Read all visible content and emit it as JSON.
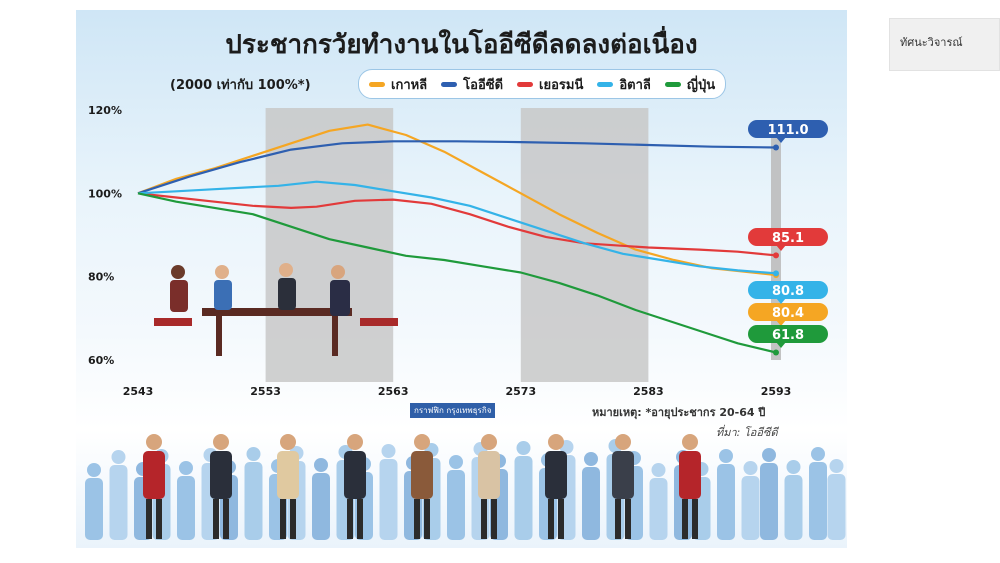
{
  "sidebar": {
    "tab_label": "ทัศนะวิจารณ์"
  },
  "chart_data": {
    "type": "line",
    "title": "ประชากรวัยทำงานในโออีซีดีลดลงต่อเนื่อง",
    "subtitle": "(2000 เท่ากับ 100%*)",
    "x": [
      2543,
      2553,
      2563,
      2573,
      2583,
      2593
    ],
    "x_ticks": [
      "2543",
      "2553",
      "2563",
      "2573",
      "2583",
      "2593"
    ],
    "y_ticks": [
      "120%",
      "100%",
      "80%",
      "60%"
    ],
    "ylim": [
      60,
      120
    ],
    "shaded_ranges": [
      [
        2553,
        2563
      ],
      [
        2573,
        2583
      ]
    ],
    "series": [
      {
        "name": "เกาหลี",
        "color": "#f5a623",
        "end_label": "80.4",
        "points": [
          [
            2543,
            100
          ],
          [
            2546,
            103.5
          ],
          [
            2549,
            106
          ],
          [
            2552,
            109
          ],
          [
            2555,
            112
          ],
          [
            2558,
            115
          ],
          [
            2561,
            116.5
          ],
          [
            2564,
            114
          ],
          [
            2567,
            110
          ],
          [
            2570,
            105
          ],
          [
            2573,
            100
          ],
          [
            2576,
            95
          ],
          [
            2579,
            90.5
          ],
          [
            2582,
            86.5
          ],
          [
            2585,
            84
          ],
          [
            2588,
            82
          ],
          [
            2593,
            80.4
          ]
        ]
      },
      {
        "name": "โออีซีดี",
        "color": "#2e5fb0",
        "end_label": "111.0",
        "points": [
          [
            2543,
            100
          ],
          [
            2547,
            104
          ],
          [
            2551,
            107.5
          ],
          [
            2555,
            110.5
          ],
          [
            2559,
            112
          ],
          [
            2563,
            112.5
          ],
          [
            2568,
            112.5
          ],
          [
            2573,
            112.3
          ],
          [
            2578,
            112
          ],
          [
            2583,
            111.6
          ],
          [
            2588,
            111.2
          ],
          [
            2593,
            111.0
          ]
        ]
      },
      {
        "name": "เยอรมนี",
        "color": "#e23a3a",
        "end_label": "85.1",
        "points": [
          [
            2543,
            100
          ],
          [
            2546,
            99
          ],
          [
            2549,
            98
          ],
          [
            2552,
            97
          ],
          [
            2555,
            96.5
          ],
          [
            2557,
            96.8
          ],
          [
            2560,
            98.2
          ],
          [
            2563,
            98.5
          ],
          [
            2566,
            97.5
          ],
          [
            2569,
            95
          ],
          [
            2572,
            92
          ],
          [
            2575,
            89.5
          ],
          [
            2578,
            88
          ],
          [
            2583,
            87
          ],
          [
            2587,
            86.5
          ],
          [
            2590,
            86
          ],
          [
            2593,
            85.1
          ]
        ]
      },
      {
        "name": "อิตาลี",
        "color": "#34b3e8",
        "end_label": "80.8",
        "points": [
          [
            2543,
            100
          ],
          [
            2546,
            100.5
          ],
          [
            2549,
            101
          ],
          [
            2552,
            101.5
          ],
          [
            2554,
            101.8
          ],
          [
            2557,
            102.8
          ],
          [
            2560,
            102
          ],
          [
            2563,
            100.5
          ],
          [
            2566,
            99
          ],
          [
            2569,
            97
          ],
          [
            2572,
            94
          ],
          [
            2575,
            91
          ],
          [
            2578,
            88
          ],
          [
            2581,
            85.5
          ],
          [
            2584,
            84
          ],
          [
            2587,
            82.5
          ],
          [
            2590,
            81.5
          ],
          [
            2593,
            80.8
          ]
        ]
      },
      {
        "name": "ญี่ปุ่น",
        "color": "#1f9a3b",
        "end_label": "61.8",
        "points": [
          [
            2543,
            100
          ],
          [
            2546,
            98
          ],
          [
            2549,
            96.5
          ],
          [
            2552,
            95
          ],
          [
            2555,
            92
          ],
          [
            2558,
            89
          ],
          [
            2561,
            87
          ],
          [
            2564,
            85
          ],
          [
            2567,
            84
          ],
          [
            2570,
            82.5
          ],
          [
            2573,
            81
          ],
          [
            2576,
            78.5
          ],
          [
            2579,
            75.5
          ],
          [
            2582,
            72
          ],
          [
            2585,
            69
          ],
          [
            2588,
            66
          ],
          [
            2590,
            64
          ],
          [
            2593,
            61.8
          ]
        ]
      }
    ],
    "label_order": [
      "111.0",
      "85.1",
      "80.8",
      "80.4",
      "61.8"
    ]
  },
  "notes": {
    "footnote": "หมายเหตุ: *อายุประชากร 20-64 ปี",
    "source": "ที่มา: โออีซีดี",
    "credit": "กราฟฟิก กรุงเทพธุรกิจ"
  }
}
